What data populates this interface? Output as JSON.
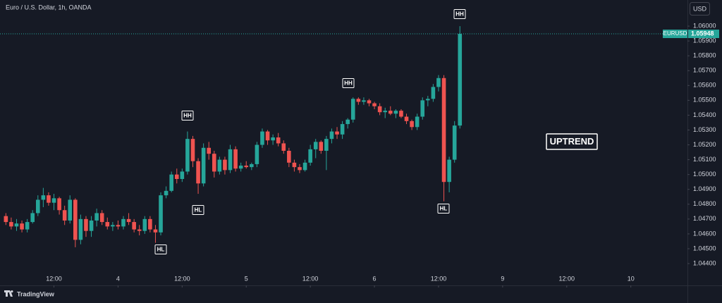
{
  "chart_data": {
    "type": "candlestick",
    "title": "Euro / U.S. Dollar, 1h, OANDA",
    "symbol": "EURUSD",
    "currency": "USD",
    "up_color": "#26a69a",
    "down_color": "#ef5350",
    "series": {
      "open": [
        1.0472,
        1.0468,
        1.0465,
        1.0467,
        1.0463,
        1.0468,
        1.0474,
        1.0483,
        1.0486,
        1.0481,
        1.0484,
        1.0476,
        1.0469,
        1.0483,
        1.0456,
        1.047,
        1.0462,
        1.0469,
        1.0474,
        1.0468,
        1.0465,
        1.0466,
        1.0465,
        1.047,
        1.0468,
        1.0463,
        1.0462,
        1.047,
        1.0463,
        1.0461,
        1.0486,
        1.0489,
        1.05,
        1.0497,
        1.0502,
        1.0524,
        1.0509,
        1.0494,
        1.0518,
        1.0514,
        1.0502,
        1.051,
        1.0503,
        1.0517,
        1.0504,
        1.0506,
        1.0505,
        1.0507,
        1.052,
        1.0529,
        1.0523,
        1.0525,
        1.0521,
        1.0516,
        1.0508,
        1.0505,
        1.0503,
        1.0508,
        1.0517,
        1.0522,
        1.0516,
        1.0524,
        1.0529,
        1.0527,
        1.0534,
        1.0537,
        1.0551,
        1.0549,
        1.055,
        1.0548,
        1.0546,
        1.0542,
        1.0543,
        1.0541,
        1.0543,
        1.0539,
        1.0536,
        1.0532,
        1.0539,
        1.055,
        1.0551,
        1.0559,
        1.0565,
        1.0495,
        1.051,
        1.0533
      ],
      "high": [
        1.0474,
        1.0471,
        1.047,
        1.0469,
        1.047,
        1.0476,
        1.0486,
        1.0491,
        1.0488,
        1.0487,
        1.0485,
        1.0479,
        1.0486,
        1.0484,
        1.0473,
        1.0472,
        1.0472,
        1.0477,
        1.0476,
        1.0471,
        1.0468,
        1.0469,
        1.0472,
        1.0474,
        1.047,
        1.0466,
        1.0472,
        1.0472,
        1.0466,
        1.0488,
        1.0492,
        1.0502,
        1.0504,
        1.0504,
        1.0529,
        1.0526,
        1.0511,
        1.0521,
        1.0522,
        1.0516,
        1.0512,
        1.0512,
        1.052,
        1.0519,
        1.0508,
        1.0509,
        1.0508,
        1.0522,
        1.0531,
        1.053,
        1.0527,
        1.0528,
        1.0523,
        1.0518,
        1.051,
        1.0507,
        1.051,
        1.052,
        1.0524,
        1.0523,
        1.0526,
        1.0531,
        1.0532,
        1.0536,
        1.0538,
        1.0552,
        1.0552,
        1.0552,
        1.0551,
        1.0549,
        1.0548,
        1.0545,
        1.0546,
        1.0544,
        1.0544,
        1.0541,
        1.0537,
        1.0541,
        1.0552,
        1.0553,
        1.0561,
        1.0567,
        1.0567,
        1.0512,
        1.0536,
        1.06
      ],
      "low": [
        1.0466,
        1.0463,
        1.0462,
        1.0461,
        1.0461,
        1.0467,
        1.0472,
        1.0478,
        1.0479,
        1.0476,
        1.0473,
        1.0466,
        1.0467,
        1.0451,
        1.0453,
        1.0458,
        1.0458,
        1.0465,
        1.0466,
        1.0463,
        1.0462,
        1.0463,
        1.0463,
        1.0466,
        1.0461,
        1.0459,
        1.046,
        1.0461,
        1.0454,
        1.0459,
        1.0484,
        1.0488,
        1.0494,
        1.0495,
        1.05,
        1.0505,
        1.0487,
        1.0492,
        1.051,
        1.0498,
        1.05,
        1.05,
        1.0501,
        1.0502,
        1.0502,
        1.0504,
        1.0503,
        1.0505,
        1.0518,
        1.052,
        1.052,
        1.0519,
        1.0514,
        1.0505,
        1.0502,
        1.0501,
        1.0502,
        1.0506,
        1.0511,
        1.0514,
        1.0503,
        1.0521,
        1.0524,
        1.0524,
        1.0531,
        1.0535,
        1.0547,
        1.0547,
        1.0546,
        1.0544,
        1.054,
        1.0538,
        1.054,
        1.0538,
        1.0538,
        1.0534,
        1.053,
        1.053,
        1.0537,
        1.0546,
        1.0549,
        1.0556,
        1.0482,
        1.0488,
        1.0508,
        1.0531
      ],
      "close": [
        1.0468,
        1.0465,
        1.0467,
        1.0463,
        1.0468,
        1.0474,
        1.0483,
        1.0486,
        1.0481,
        1.0484,
        1.0476,
        1.0469,
        1.0483,
        1.0456,
        1.047,
        1.0462,
        1.0469,
        1.0474,
        1.0468,
        1.0465,
        1.0466,
        1.0465,
        1.047,
        1.0468,
        1.0463,
        1.0462,
        1.047,
        1.0463,
        1.0461,
        1.0486,
        1.0489,
        1.05,
        1.0497,
        1.0502,
        1.0524,
        1.0509,
        1.0494,
        1.0518,
        1.0514,
        1.0502,
        1.051,
        1.0503,
        1.0517,
        1.0504,
        1.0506,
        1.0505,
        1.0507,
        1.052,
        1.0529,
        1.0523,
        1.0525,
        1.0521,
        1.0516,
        1.0508,
        1.0505,
        1.0503,
        1.0508,
        1.0517,
        1.0522,
        1.0516,
        1.0524,
        1.0529,
        1.0527,
        1.0534,
        1.0537,
        1.0551,
        1.0549,
        1.055,
        1.0548,
        1.0546,
        1.0542,
        1.0543,
        1.0541,
        1.0543,
        1.0539,
        1.0536,
        1.0532,
        1.0539,
        1.055,
        1.0551,
        1.0559,
        1.0565,
        1.0495,
        1.051,
        1.0533,
        1.05948
      ]
    },
    "ylim": [
      1.04253,
      1.06176
    ],
    "yticks": [
      {
        "value": 1.044,
        "label": "1.04400"
      },
      {
        "value": 1.045,
        "label": "1.04500"
      },
      {
        "value": 1.046,
        "label": "1.04600"
      },
      {
        "value": 1.047,
        "label": "1.04700"
      },
      {
        "value": 1.048,
        "label": "1.04800"
      },
      {
        "value": 1.049,
        "label": "1.04900"
      },
      {
        "value": 1.05,
        "label": "1.05000"
      },
      {
        "value": 1.051,
        "label": "1.05100"
      },
      {
        "value": 1.052,
        "label": "1.05200"
      },
      {
        "value": 1.053,
        "label": "1.05300"
      },
      {
        "value": 1.054,
        "label": "1.05400"
      },
      {
        "value": 1.055,
        "label": "1.05500"
      },
      {
        "value": 1.056,
        "label": "1.05600"
      },
      {
        "value": 1.057,
        "label": "1.05700"
      },
      {
        "value": 1.058,
        "label": "1.05800"
      },
      {
        "value": 1.059,
        "label": "1.05900"
      },
      {
        "value": 1.06,
        "label": "1.06000"
      }
    ],
    "xlim": [
      -1.1,
      127.6
    ],
    "xticks": [
      {
        "value": 9,
        "label": "12:00"
      },
      {
        "value": 21,
        "label": "4"
      },
      {
        "value": 33,
        "label": "12:00"
      },
      {
        "value": 45,
        "label": "5"
      },
      {
        "value": 57,
        "label": "12:00"
      },
      {
        "value": 69,
        "label": "6"
      },
      {
        "value": 81,
        "label": "12:00"
      },
      {
        "value": 93,
        "label": "9"
      },
      {
        "value": 105,
        "label": "12:00"
      },
      {
        "value": 117,
        "label": "10"
      }
    ],
    "annotations": [
      "HH",
      "HH",
      "HH",
      "HL",
      "HL",
      "HL",
      "UPTREND"
    ]
  },
  "brand": "TradingView"
}
